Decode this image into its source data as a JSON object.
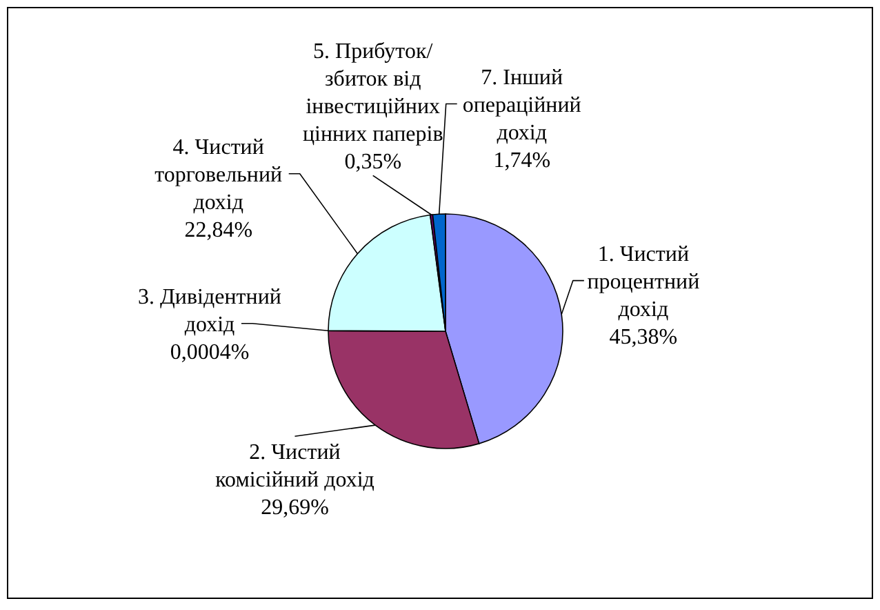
{
  "chart_data": {
    "type": "pie",
    "categories": [
      "1. Чистий процентний дохід",
      "2. Чистий комісійний дохід",
      "3. Дивідентний дохід",
      "4. Чистий торговельний дохід",
      "5. Прибуток/збиток від інвестиційних цінних паперів",
      "7. Інший операційний дохід"
    ],
    "values": [
      45.38,
      29.69,
      0.0004,
      22.84,
      0.35,
      1.74
    ],
    "value_labels": [
      "45,38%",
      "29,69%",
      "0,0004%",
      "22,84%",
      "0,35%",
      "1,74%"
    ],
    "colors": [
      "#9999ff",
      "#993366",
      "#ffffcc",
      "#ccffff",
      "#660066",
      "#0066cc"
    ]
  }
}
